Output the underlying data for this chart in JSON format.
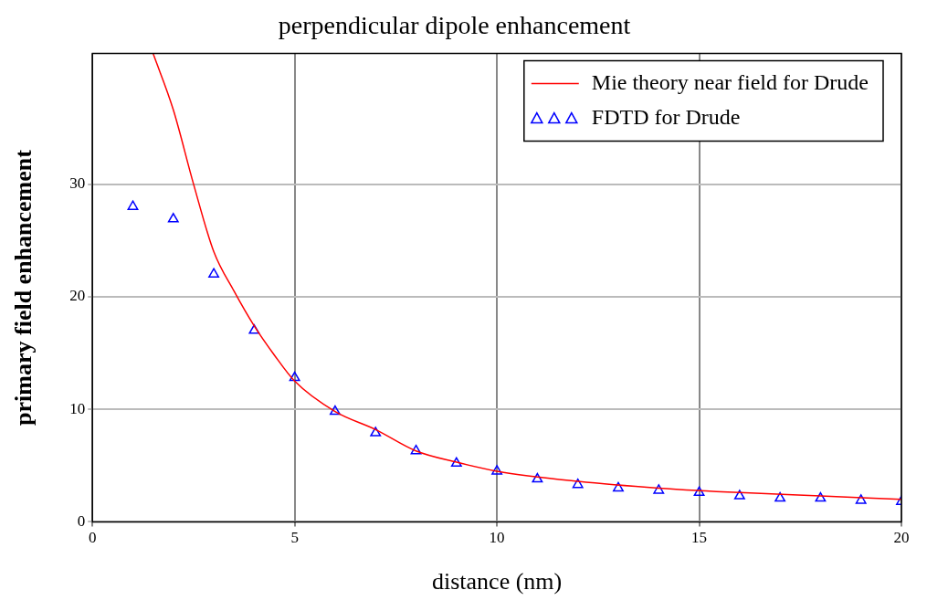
{
  "chart_data": {
    "type": "line",
    "title": "perpendicular dipole enhancement",
    "xlabel": "distance (nm)",
    "ylabel": "primary field enhancement",
    "xlim": [
      0,
      20
    ],
    "xticks": [
      0,
      5,
      10,
      15,
      20
    ],
    "ylim": [
      0,
      41.6
    ],
    "yticks": [
      0,
      10,
      20,
      30
    ],
    "grid": true,
    "legend": "top right",
    "series": [
      {
        "name": "Mie theory near field for Drude",
        "type": "line",
        "color": "#ff0000",
        "marker": "none",
        "line_style": "solid",
        "x": [
          1.5,
          2,
          2.5,
          3,
          3.5,
          4,
          4.5,
          5,
          6,
          7,
          8,
          9,
          10,
          12,
          14,
          16,
          18,
          20
        ],
        "values": [
          41.6,
          36.6,
          30,
          24,
          20.5,
          17.4,
          14.8,
          12.5,
          9.8,
          8.2,
          6.3,
          5.3,
          4.5,
          3.6,
          3.0,
          2.6,
          2.3,
          2.0
        ]
      },
      {
        "name": "FDTD for Drude",
        "type": "scatter",
        "color": "#0000ff",
        "marker": "triangle",
        "x": [
          1,
          2,
          3,
          4,
          5,
          6,
          7,
          8,
          9,
          10,
          11,
          12,
          13,
          14,
          15,
          16,
          17,
          18,
          19,
          20
        ],
        "values": [
          28.0,
          26.9,
          22.0,
          17.0,
          12.8,
          9.8,
          7.9,
          6.3,
          5.2,
          4.5,
          3.8,
          3.3,
          3.0,
          2.8,
          2.6,
          2.3,
          2.1,
          2.1,
          1.9,
          1.8
        ]
      }
    ]
  }
}
